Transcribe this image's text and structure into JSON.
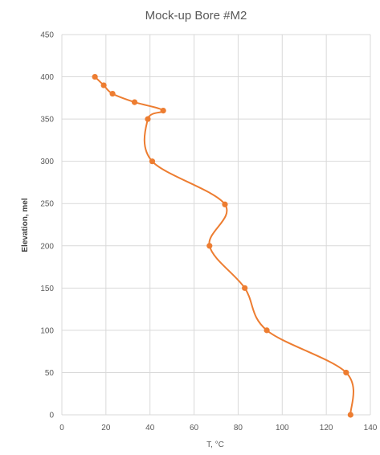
{
  "chart_data": {
    "type": "line",
    "title": "Mock-up Bore #M2",
    "xlabel": "T, °C",
    "ylabel": "Elevation, mel",
    "xlim": [
      0,
      140
    ],
    "ylim": [
      0,
      450
    ],
    "x_ticks": [
      "0",
      "20",
      "40",
      "60",
      "80",
      "100",
      "120",
      "140"
    ],
    "y_ticks": [
      "0",
      "50",
      "100",
      "150",
      "200",
      "250",
      "300",
      "350",
      "400",
      "450"
    ],
    "grid": "vertical and horizontal",
    "legend": "none",
    "smooth": true,
    "series": [
      {
        "color": "#ed7d31",
        "points": [
          {
            "x": 15,
            "y": 400
          },
          {
            "x": 19,
            "y": 390
          },
          {
            "x": 23,
            "y": 380
          },
          {
            "x": 33,
            "y": 370
          },
          {
            "x": 46,
            "y": 360
          },
          {
            "x": 39,
            "y": 350
          },
          {
            "x": 41,
            "y": 300
          },
          {
            "x": 74,
            "y": 249
          },
          {
            "x": 67,
            "y": 200
          },
          {
            "x": 83,
            "y": 150
          },
          {
            "x": 93,
            "y": 100
          },
          {
            "x": 129,
            "y": 50
          },
          {
            "x": 131,
            "y": 0
          }
        ]
      }
    ]
  }
}
